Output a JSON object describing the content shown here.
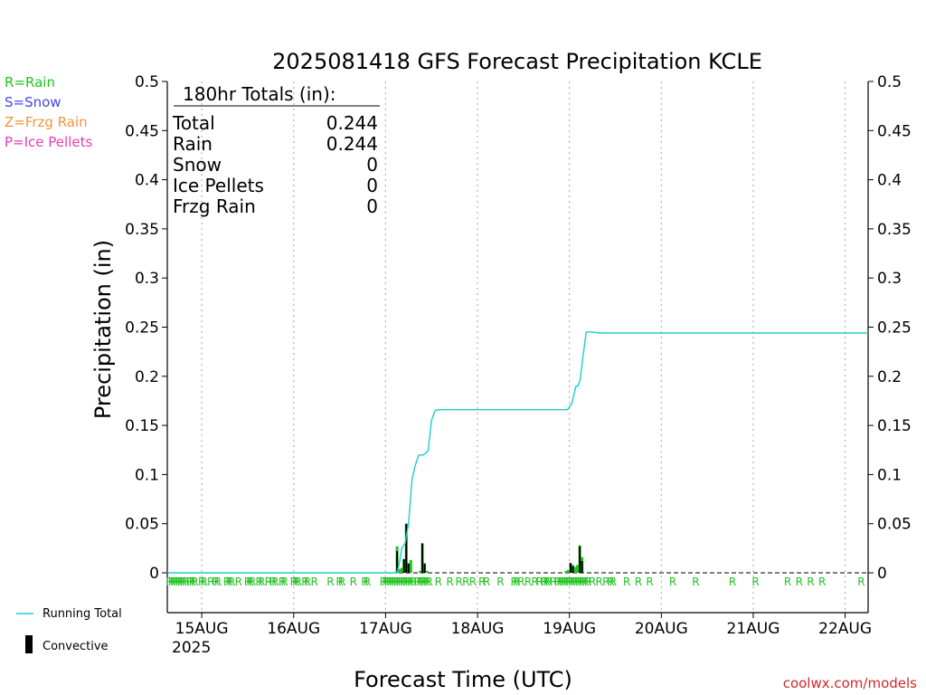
{
  "chart_data": {
    "type": "bar",
    "title": "2025081418 GFS Forecast Precipitation KCLE",
    "xlabel": "Forecast Time (UTC)",
    "ylabel": "Precipitation (in)",
    "ylim": [
      0,
      0.5
    ],
    "yticks": [
      "0",
      "0.05",
      "0.1",
      "0.15",
      "0.2",
      "0.25",
      "0.3",
      "0.35",
      "0.4",
      "0.45",
      "0.5"
    ],
    "yticks_value": [
      0,
      0.05,
      0.1,
      0.15,
      0.2,
      0.25,
      0.3,
      0.35,
      0.4,
      0.45,
      0.5
    ],
    "xlim_hours": [
      -3,
      180
    ],
    "xticks": [
      {
        "label": "15AUG",
        "hour": 6
      },
      {
        "label": "16AUG",
        "hour": 30
      },
      {
        "label": "17AUG",
        "hour": 54
      },
      {
        "label": "18AUG",
        "hour": 78
      },
      {
        "label": "19AUG",
        "hour": 102
      },
      {
        "label": "20AUG",
        "hour": 126
      },
      {
        "label": "21AUG",
        "hour": 150
      },
      {
        "label": "22AUG",
        "hour": 174
      }
    ],
    "year_label": "2025",
    "grid": "vertical dotted at day boundaries",
    "legend_top_left": [
      {
        "text": "R=Rain",
        "color": "#22c322"
      },
      {
        "text": "S=Snow",
        "color": "#4646e6"
      },
      {
        "text": "Z=Frzg Rain",
        "color": "#f0963c"
      },
      {
        "text": "P=Ice Pellets",
        "color": "#e63cb4"
      }
    ],
    "legend_bottom_left": [
      {
        "text": "Running Total",
        "color": "#1ecdcd",
        "kind": "line"
      },
      {
        "text": "Convective",
        "color": "#000000",
        "kind": "bar"
      }
    ],
    "totals": {
      "heading": "180hr Totals (in):",
      "rows": [
        {
          "label": "Total",
          "value": "0.244"
        },
        {
          "label": "Rain",
          "value": "0.244"
        },
        {
          "label": "Snow",
          "value": "0"
        },
        {
          "label": "Ice Pellets",
          "value": "0"
        },
        {
          "label": "Frzg Rain",
          "value": "0"
        }
      ]
    },
    "running_total": {
      "name": "Running Total",
      "color": "#1ecdcd",
      "x": [
        -3,
        51,
        54,
        57,
        57.6,
        58.2,
        59.1,
        60,
        60.9,
        61.8,
        62.7,
        63.9,
        65.1,
        66,
        66.9,
        67.8,
        70.5,
        101.5,
        102.6,
        103.7,
        104.2,
        104.8,
        105.8,
        106.4,
        107.1,
        108,
        110,
        180
      ],
      "y": [
        0,
        0,
        0,
        0,
        0.01,
        0.025,
        0.03,
        0.05,
        0.095,
        0.11,
        0.12,
        0.12,
        0.124,
        0.155,
        0.165,
        0.166,
        0.166,
        0.166,
        0.172,
        0.19,
        0.19,
        0.196,
        0.228,
        0.245,
        0.245,
        0.245,
        0.244,
        0.244
      ]
    },
    "precip_bars": {
      "name": "Rain",
      "color": "#22c322",
      "x": [
        57.0,
        57.6,
        58.2,
        58.8,
        59.4,
        60.0,
        60.6,
        63.0,
        63.6,
        64.2,
        64.8,
        101.1,
        101.7,
        102.3,
        102.9,
        103.5,
        104.1,
        104.7,
        105.3
      ],
      "values": [
        0.027,
        0.004,
        0.005,
        0.014,
        0.05,
        0.01,
        0.013,
        0.002,
        0.03,
        0.01,
        0.002,
        0.002,
        0.003,
        0.01,
        0.008,
        0.006,
        0.008,
        0.028,
        0.016
      ]
    },
    "convective_bars": {
      "name": "Convective",
      "color": "#000000",
      "x": [
        57.0,
        58.8,
        59.4,
        60.0,
        63.6,
        64.2,
        102.3,
        102.9,
        104.7,
        105.3
      ],
      "values": [
        0.022,
        0.014,
        0.05,
        0.009,
        0.03,
        0.009,
        0.01,
        0.007,
        0.027,
        0.012
      ]
    },
    "ptype_marker_symbol": "R",
    "ptype_markers_x": [
      -2.4,
      -1.8,
      -1.2,
      -0.6,
      0.0,
      0.6,
      1.2,
      1.8,
      3.0,
      3.6,
      4.2,
      6.0,
      6.6,
      8.4,
      9.6,
      10.2,
      12.6,
      13.2,
      13.8,
      15.6,
      18.0,
      18.6,
      19.2,
      21.0,
      21.6,
      23.4,
      24.6,
      25.2,
      27.0,
      27.6,
      30.0,
      30.6,
      31.2,
      33.0,
      33.6,
      35.4,
      39.6,
      42.0,
      42.6,
      45.6,
      48.6,
      49.2,
      53.4,
      54.0,
      54.6,
      55.2,
      55.8,
      56.4,
      57.0,
      57.6,
      58.2,
      58.8,
      59.4,
      60.0,
      60.6,
      61.2,
      62.4,
      63.0,
      63.6,
      64.2,
      64.8,
      65.4,
      67.8,
      70.8,
      73.2,
      75.0,
      76.8,
      79.2,
      80.4,
      84.0,
      87.6,
      88.2,
      89.4,
      91.2,
      93.0,
      94.2,
      95.4,
      96.0,
      96.6,
      97.8,
      99.0,
      99.6,
      100.2,
      100.8,
      101.4,
      102.0,
      102.6,
      103.2,
      103.8,
      104.4,
      105.0,
      105.6,
      106.2,
      106.8,
      108.0,
      109.8,
      111.6,
      112.8,
      113.4,
      117.0,
      120.0,
      123.0,
      129.0,
      135.0,
      144.6,
      150.6,
      159.0,
      162.0,
      165.0,
      168.0,
      178.2
    ],
    "watermark": "coolwx.com/models"
  }
}
